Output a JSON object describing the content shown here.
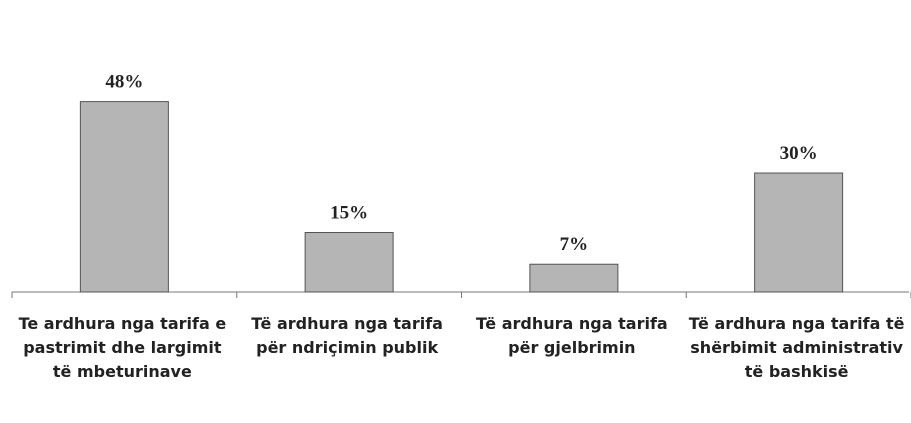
{
  "chart_data": {
    "type": "bar",
    "categories": [
      "Te ardhura nga tarifa e pastrimit dhe largimit të mbeturinave",
      "Të ardhura nga tarifa për ndriçimin publik",
      "Të ardhura nga tarifa për gjelbrimin",
      "Të ardhura nga tarifa të shërbimit administrativ të bashkisë"
    ],
    "values": [
      48,
      15,
      7,
      30
    ],
    "value_labels": [
      "48%",
      "15%",
      "7%",
      "30%"
    ],
    "color": "#b5b5b5"
  }
}
